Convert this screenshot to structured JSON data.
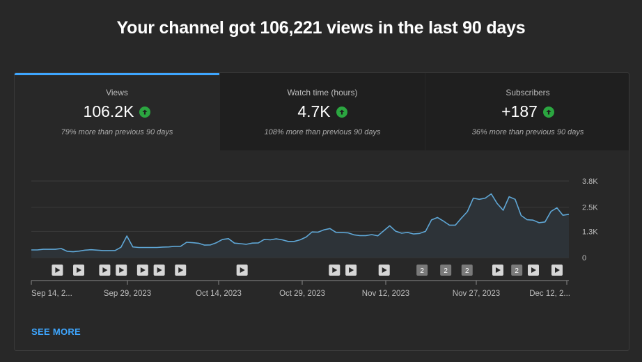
{
  "headline": "Your channel got 106,221 views in the last 90 days",
  "tabs": [
    {
      "label": "Views",
      "value": "106.2K",
      "subtitle": "79% more than previous 90 days",
      "active": true
    },
    {
      "label": "Watch time (hours)",
      "value": "4.7K",
      "subtitle": "108% more than previous 90 days",
      "active": false
    },
    {
      "label": "Subscribers",
      "value": "+187",
      "subtitle": "36% more than previous 90 days",
      "active": false
    }
  ],
  "icons": {
    "trend": "arrow-up-icon",
    "marker": "play-icon"
  },
  "colors": {
    "accent": "#3ea6ff",
    "positive": "#2ba640",
    "line": "#5fa7d6"
  },
  "see_more": "SEE MORE",
  "chart_data": {
    "type": "area",
    "x_tick_labels": [
      "Sep 14, 2...",
      "Sep 29, 2023",
      "Oct 14, 2023",
      "Oct 29, 2023",
      "Nov 12, 2023",
      "Nov 27, 2023",
      "Dec 12, 2..."
    ],
    "y_tick_labels": [
      "3.8K",
      "2.5K",
      "1.3K",
      "0"
    ],
    "y_ticks": [
      3800,
      2500,
      1300,
      0
    ],
    "ylim": [
      0,
      3800
    ],
    "grid": true,
    "values": [
      380,
      380,
      410,
      410,
      410,
      450,
      310,
      290,
      320,
      370,
      390,
      370,
      350,
      350,
      350,
      510,
      1070,
      530,
      500,
      500,
      500,
      500,
      520,
      530,
      560,
      560,
      760,
      740,
      710,
      620,
      630,
      740,
      900,
      940,
      720,
      690,
      660,
      720,
      730,
      900,
      880,
      930,
      880,
      800,
      800,
      880,
      1020,
      1270,
      1260,
      1380,
      1440,
      1250,
      1240,
      1230,
      1130,
      1090,
      1090,
      1140,
      1080,
      1330,
      1580,
      1310,
      1210,
      1250,
      1170,
      1200,
      1300,
      1870,
      1990,
      1810,
      1610,
      1610,
      1960,
      2280,
      2950,
      2890,
      2950,
      3160,
      2680,
      2350,
      3020,
      2890,
      2090,
      1880,
      1860,
      1730,
      1770,
      2290,
      2470,
      2100,
      2150
    ],
    "markers": [
      {
        "day": 11,
        "label": ""
      },
      {
        "day": 20,
        "label": ""
      },
      {
        "day": 31,
        "label": ""
      },
      {
        "day": 38,
        "label": ""
      },
      {
        "day": 47,
        "label": ""
      },
      {
        "day": 54,
        "label": ""
      },
      {
        "day": 63,
        "label": ""
      },
      {
        "day": 89,
        "label": ""
      },
      {
        "day": 128,
        "label": ""
      },
      {
        "day": 135,
        "label": ""
      },
      {
        "day": 149,
        "label": ""
      },
      {
        "day": 165,
        "label": "2"
      },
      {
        "day": 175,
        "label": "2"
      },
      {
        "day": 184,
        "label": "2"
      },
      {
        "day": 197,
        "label": ""
      },
      {
        "day": 205,
        "label": "2"
      },
      {
        "day": 212,
        "label": ""
      },
      {
        "day": 222,
        "label": ""
      }
    ]
  }
}
